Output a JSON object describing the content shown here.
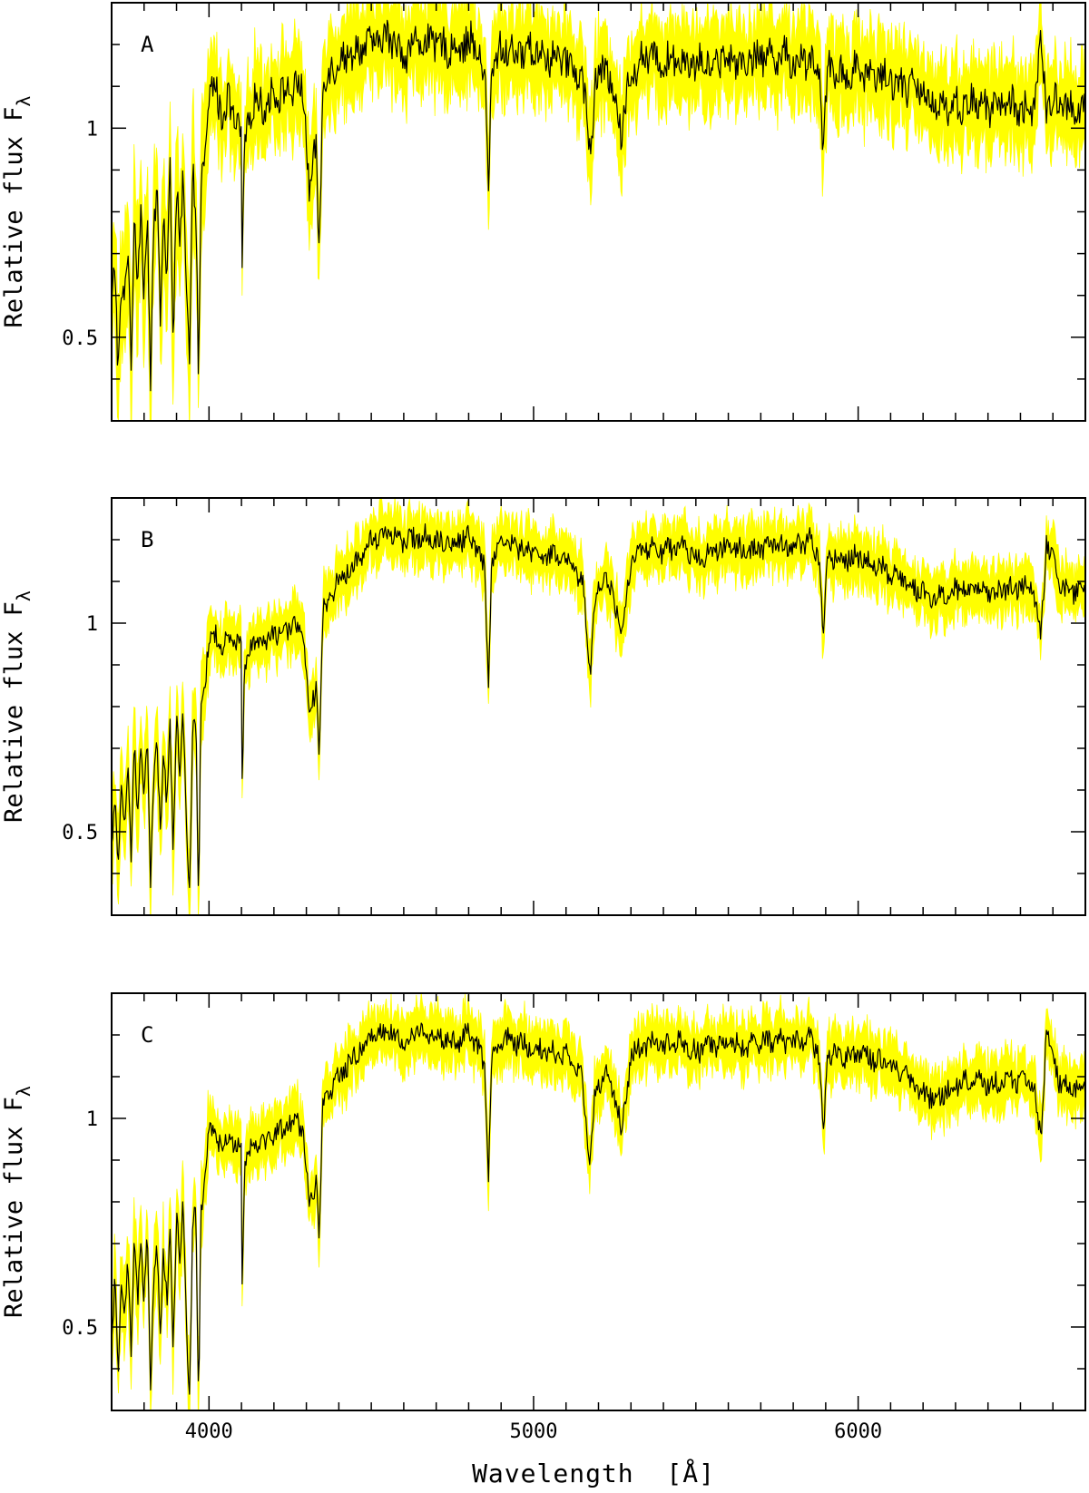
{
  "chart_data": [
    {
      "type": "line",
      "panel_label": "A",
      "ylabel": "Relative flux F",
      "ylabel_subscript": "λ",
      "xlim": [
        3700,
        6700
      ],
      "ylim": [
        0.3,
        1.3
      ],
      "x_ticks": [
        4000,
        5000,
        6000
      ],
      "y_ticks": [
        0.5,
        1
      ],
      "y_tick_labels": [
        "0.5",
        "1"
      ],
      "grid": false,
      "noise_amplitude": 0.09,
      "series": [
        {
          "color": "#000000",
          "band_color": "#ffff00",
          "x": [
            3700,
            3710,
            3720,
            3730,
            3740,
            3750,
            3760,
            3770,
            3780,
            3790,
            3800,
            3810,
            3820,
            3830,
            3840,
            3850,
            3860,
            3870,
            3880,
            3890,
            3900,
            3910,
            3920,
            3930,
            3940,
            3950,
            3960,
            3968,
            3975,
            3990,
            4000,
            4020,
            4040,
            4060,
            4080,
            4100,
            4102,
            4110,
            4130,
            4150,
            4180,
            4200,
            4230,
            4260,
            4290,
            4310,
            4330,
            4340,
            4350,
            4380,
            4420,
            4460,
            4500,
            4550,
            4600,
            4650,
            4700,
            4750,
            4800,
            4830,
            4850,
            4861,
            4870,
            4900,
            4950,
            5000,
            5050,
            5100,
            5150,
            5175,
            5190,
            5220,
            5260,
            5270,
            5300,
            5350,
            5400,
            5450,
            5500,
            5550,
            5600,
            5650,
            5700,
            5750,
            5800,
            5850,
            5880,
            5893,
            5905,
            5950,
            6000,
            6050,
            6100,
            6150,
            6200,
            6250,
            6300,
            6350,
            6400,
            6450,
            6500,
            6540,
            6563,
            6580,
            6620,
            6650,
            6700
          ],
          "y": [
            0.55,
            0.68,
            0.42,
            0.62,
            0.58,
            0.72,
            0.45,
            0.78,
            0.65,
            0.8,
            0.6,
            0.82,
            0.4,
            0.75,
            0.85,
            0.55,
            0.82,
            0.62,
            0.88,
            0.5,
            0.9,
            0.7,
            0.88,
            0.6,
            0.45,
            0.9,
            0.82,
            0.35,
            0.85,
            0.95,
            1.08,
            1.1,
            1.03,
            1.06,
            1.02,
            0.98,
            0.62,
            0.97,
            1.05,
            1.07,
            1.05,
            1.09,
            1.08,
            1.1,
            1.09,
            0.85,
            0.95,
            0.7,
            1.1,
            1.15,
            1.17,
            1.19,
            1.2,
            1.22,
            1.18,
            1.21,
            1.2,
            1.19,
            1.21,
            1.18,
            1.12,
            0.85,
            1.13,
            1.19,
            1.18,
            1.19,
            1.17,
            1.16,
            1.12,
            0.95,
            1.1,
            1.15,
            1.05,
            0.98,
            1.14,
            1.17,
            1.16,
            1.17,
            1.15,
            1.16,
            1.17,
            1.16,
            1.17,
            1.18,
            1.16,
            1.17,
            1.14,
            0.93,
            1.14,
            1.13,
            1.14,
            1.13,
            1.12,
            1.1,
            1.08,
            1.06,
            1.05,
            1.06,
            1.05,
            1.06,
            1.05,
            1.04,
            1.2,
            1.05,
            1.06,
            1.05,
            1.05
          ]
        }
      ]
    },
    {
      "type": "line",
      "panel_label": "B",
      "ylabel": "Relative flux F",
      "ylabel_subscript": "λ",
      "xlim": [
        3700,
        6700
      ],
      "ylim": [
        0.3,
        1.3
      ],
      "x_ticks": [
        4000,
        5000,
        6000
      ],
      "y_ticks": [
        0.5,
        1
      ],
      "y_tick_labels": [
        "0.5",
        "1"
      ],
      "grid": false,
      "noise_amplitude": 0.055,
      "series": [
        {
          "color": "#000000",
          "band_color": "#ffff00",
          "x": [
            3700,
            3710,
            3720,
            3730,
            3740,
            3750,
            3760,
            3770,
            3780,
            3790,
            3800,
            3810,
            3820,
            3830,
            3840,
            3850,
            3860,
            3870,
            3880,
            3890,
            3900,
            3910,
            3920,
            3930,
            3940,
            3950,
            3960,
            3968,
            3975,
            3990,
            4000,
            4020,
            4040,
            4060,
            4080,
            4100,
            4102,
            4110,
            4130,
            4150,
            4180,
            4200,
            4230,
            4260,
            4290,
            4310,
            4330,
            4340,
            4350,
            4380,
            4420,
            4460,
            4500,
            4550,
            4600,
            4650,
            4700,
            4750,
            4800,
            4830,
            4850,
            4861,
            4870,
            4900,
            4950,
            5000,
            5050,
            5100,
            5150,
            5175,
            5190,
            5220,
            5260,
            5270,
            5300,
            5350,
            5400,
            5450,
            5500,
            5550,
            5600,
            5650,
            5700,
            5750,
            5800,
            5850,
            5880,
            5893,
            5905,
            5950,
            6000,
            6050,
            6100,
            6150,
            6200,
            6250,
            6300,
            6350,
            6400,
            6450,
            6500,
            6540,
            6563,
            6580,
            6620,
            6650,
            6700
          ],
          "y": [
            0.45,
            0.6,
            0.4,
            0.62,
            0.5,
            0.65,
            0.45,
            0.72,
            0.55,
            0.7,
            0.58,
            0.75,
            0.38,
            0.62,
            0.72,
            0.5,
            0.7,
            0.55,
            0.75,
            0.45,
            0.78,
            0.65,
            0.8,
            0.52,
            0.35,
            0.75,
            0.78,
            0.3,
            0.8,
            0.88,
            0.95,
            0.98,
            0.93,
            0.96,
            0.95,
            0.94,
            0.62,
            0.9,
            0.94,
            0.96,
            0.95,
            0.98,
            0.97,
            1.0,
            0.98,
            0.76,
            0.85,
            0.7,
            1.02,
            1.08,
            1.12,
            1.15,
            1.2,
            1.22,
            1.19,
            1.21,
            1.2,
            1.19,
            1.21,
            1.18,
            1.12,
            0.85,
            1.14,
            1.2,
            1.18,
            1.17,
            1.16,
            1.15,
            1.1,
            0.89,
            1.06,
            1.12,
            1.02,
            0.96,
            1.15,
            1.18,
            1.17,
            1.18,
            1.16,
            1.17,
            1.18,
            1.17,
            1.18,
            1.19,
            1.18,
            1.2,
            1.16,
            0.95,
            1.16,
            1.15,
            1.16,
            1.14,
            1.12,
            1.1,
            1.07,
            1.06,
            1.08,
            1.08,
            1.07,
            1.08,
            1.09,
            1.08,
            0.96,
            1.2,
            1.09,
            1.08,
            1.07
          ]
        }
      ]
    },
    {
      "type": "line",
      "panel_label": "C",
      "ylabel": "Relative flux F",
      "ylabel_subscript": "λ",
      "xlabel": "Wavelength  [Å]",
      "xlim": [
        3700,
        6700
      ],
      "ylim": [
        0.3,
        1.3
      ],
      "x_ticks": [
        4000,
        5000,
        6000
      ],
      "x_tick_labels": [
        "4000",
        "5000",
        "6000"
      ],
      "y_ticks": [
        0.5,
        1
      ],
      "y_tick_labels": [
        "0.5",
        "1"
      ],
      "grid": false,
      "noise_amplitude": 0.055,
      "series": [
        {
          "color": "#000000",
          "band_color": "#ffff00",
          "x": [
            3700,
            3710,
            3720,
            3730,
            3740,
            3750,
            3760,
            3770,
            3780,
            3790,
            3800,
            3810,
            3820,
            3830,
            3840,
            3850,
            3860,
            3870,
            3880,
            3890,
            3900,
            3910,
            3920,
            3930,
            3940,
            3950,
            3960,
            3968,
            3975,
            3990,
            4000,
            4020,
            4040,
            4060,
            4080,
            4100,
            4102,
            4110,
            4130,
            4150,
            4180,
            4200,
            4230,
            4260,
            4290,
            4310,
            4330,
            4340,
            4350,
            4380,
            4420,
            4460,
            4500,
            4550,
            4600,
            4650,
            4700,
            4750,
            4800,
            4830,
            4850,
            4861,
            4870,
            4900,
            4950,
            5000,
            5050,
            5100,
            5150,
            5175,
            5190,
            5220,
            5260,
            5270,
            5300,
            5350,
            5400,
            5450,
            5500,
            5550,
            5600,
            5650,
            5700,
            5750,
            5800,
            5850,
            5880,
            5893,
            5905,
            5950,
            6000,
            6050,
            6100,
            6150,
            6200,
            6250,
            6300,
            6350,
            6400,
            6450,
            6500,
            6540,
            6563,
            6580,
            6620,
            6650,
            6700
          ],
          "y": [
            0.45,
            0.62,
            0.4,
            0.6,
            0.5,
            0.66,
            0.45,
            0.7,
            0.55,
            0.72,
            0.58,
            0.75,
            0.36,
            0.62,
            0.7,
            0.5,
            0.68,
            0.55,
            0.73,
            0.45,
            0.78,
            0.65,
            0.8,
            0.52,
            0.34,
            0.75,
            0.76,
            0.3,
            0.78,
            0.88,
            0.96,
            0.97,
            0.92,
            0.95,
            0.94,
            0.93,
            0.62,
            0.9,
            0.93,
            0.95,
            0.94,
            0.97,
            0.97,
            1.0,
            0.98,
            0.78,
            0.86,
            0.7,
            1.02,
            1.08,
            1.12,
            1.16,
            1.2,
            1.21,
            1.18,
            1.21,
            1.2,
            1.18,
            1.2,
            1.17,
            1.12,
            0.85,
            1.13,
            1.19,
            1.18,
            1.17,
            1.16,
            1.15,
            1.1,
            0.89,
            1.06,
            1.12,
            1.03,
            0.96,
            1.15,
            1.18,
            1.17,
            1.18,
            1.16,
            1.17,
            1.18,
            1.17,
            1.18,
            1.19,
            1.18,
            1.2,
            1.15,
            0.95,
            1.16,
            1.15,
            1.16,
            1.14,
            1.12,
            1.1,
            1.06,
            1.05,
            1.08,
            1.09,
            1.08,
            1.09,
            1.09,
            1.08,
            0.95,
            1.21,
            1.09,
            1.08,
            1.07
          ]
        }
      ]
    }
  ]
}
